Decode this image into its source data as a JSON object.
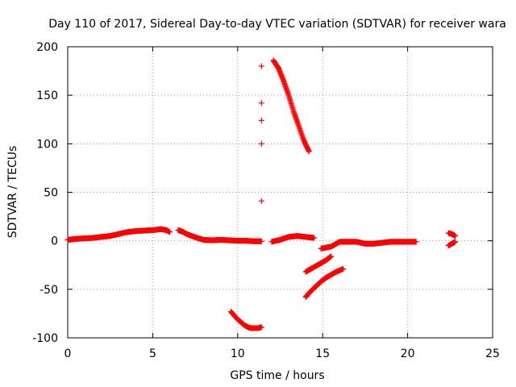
{
  "chart_data": {
    "type": "scatter",
    "title": "Day 110 of 2017, Sidereal Day-to-day VTEC variation (SDTVAR) for receiver wara",
    "xlabel": "GPS time / hours",
    "ylabel": "SDTVAR / TECUs",
    "xlim": [
      0,
      25
    ],
    "ylim": [
      -100,
      200
    ],
    "xticks": [
      0,
      5,
      10,
      15,
      20,
      25
    ],
    "yticks": [
      -100,
      -50,
      0,
      50,
      100,
      150,
      200
    ],
    "xtick_labels": [
      "0",
      "5",
      "10",
      "15",
      "20",
      "25"
    ],
    "ytick_labels": [
      "-100",
      "-50",
      "0",
      "50",
      "100",
      "150",
      "200"
    ],
    "grid": true,
    "marker": "+",
    "color": "#ff0000",
    "series": [
      {
        "name": "SDTVAR",
        "segments": [
          {
            "x": [
              0.0,
              0.5,
              1.0,
              1.5,
              2.0,
              2.5,
              3.0,
              3.5,
              4.0,
              4.5,
              5.0,
              5.5,
              5.8,
              6.0
            ],
            "y": [
              1,
              2,
              2.5,
              3,
              4,
              5,
              7,
              9,
              10,
              10.5,
              11,
              12,
              11,
              9
            ]
          },
          {
            "x": [
              6.5,
              6.8,
              7.0,
              7.3,
              7.6,
              8.0,
              8.5,
              9.0,
              9.5,
              10.0,
              10.5,
              11.0,
              11.4
            ],
            "y": [
              11,
              9,
              7,
              5,
              3,
              1,
              0.5,
              1,
              0.5,
              0,
              0,
              -0.5,
              -0.5
            ]
          },
          {
            "x": [
              9.6,
              9.8,
              10.0,
              10.2,
              10.4,
              10.6,
              10.8,
              11.0,
              11.2,
              11.4
            ],
            "y": [
              -73,
              -77,
              -81,
              -84,
              -87,
              -89,
              -90,
              -90,
              -90,
              -89
            ]
          },
          {
            "x": [
              12.1,
              12.4,
              12.7,
              13.0,
              13.3,
              13.6,
              13.9,
              14.2
            ],
            "y": [
              186,
              178,
              165,
              150,
              133,
              118,
              103,
              92
            ]
          },
          {
            "x": [
              12.0,
              12.5,
              13.0,
              13.5,
              14.0,
              14.5
            ],
            "y": [
              -1,
              1,
              4,
              5,
              4,
              3
            ]
          },
          {
            "x": [
              14.0,
              14.4,
              14.8,
              15.2,
              15.5
            ],
            "y": [
              -32,
              -28,
              -24,
              -20,
              -16
            ]
          },
          {
            "x": [
              14.0,
              14.3,
              14.6,
              14.9,
              15.2,
              15.5,
              15.8,
              16.2
            ],
            "y": [
              -58,
              -52,
              -47,
              -42,
              -38,
              -35,
              -32,
              -29
            ]
          },
          {
            "x": [
              14.9,
              15.2,
              15.5,
              15.8,
              16.0,
              16.5,
              17.0,
              17.5,
              18.0,
              18.5,
              19.0,
              19.5,
              20.0,
              20.5
            ],
            "y": [
              -8,
              -7,
              -6,
              -3,
              -1,
              -1,
              -1,
              -3,
              -3,
              -2,
              -1,
              -1,
              -1,
              -1
            ]
          },
          {
            "x": [
              22.4,
              22.6,
              22.8
            ],
            "y": [
              8,
              7,
              5
            ]
          },
          {
            "x": [
              22.4,
              22.6,
              22.8
            ],
            "y": [
              -5,
              -3,
              -1
            ]
          }
        ],
        "points": {
          "x": [
            11.4,
            11.4,
            11.4,
            11.4,
            11.4
          ],
          "y": [
            180,
            142,
            124,
            100,
            41
          ]
        }
      }
    ]
  }
}
